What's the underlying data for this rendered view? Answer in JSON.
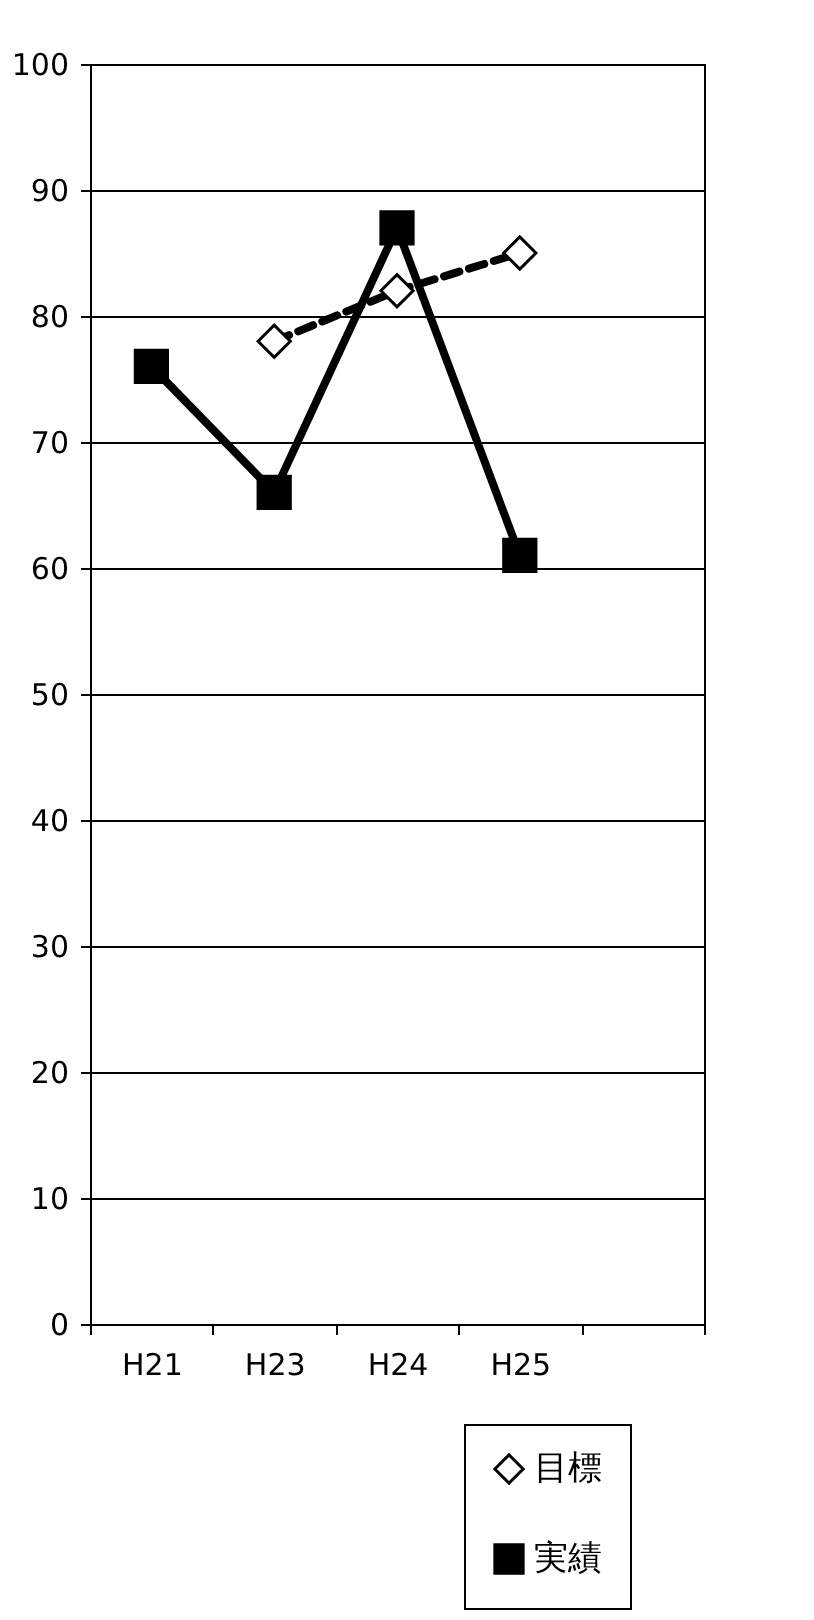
{
  "chart_data": {
    "type": "line",
    "categories": [
      "H21",
      "H23",
      "H24",
      "H25",
      null
    ],
    "series": [
      {
        "name": "目標",
        "color": "#000000",
        "values": [
          null,
          78,
          82,
          85,
          null
        ],
        "line_style": "dashed",
        "marker": "diamond"
      },
      {
        "name": "実績",
        "color": "#000000",
        "values": [
          76,
          66,
          87,
          61,
          null
        ],
        "line_style": "solid",
        "marker": "square"
      }
    ],
    "ylim": [
      0,
      100
    ],
    "yticks": [
      0,
      10,
      20,
      30,
      40,
      50,
      60,
      70,
      80,
      90,
      100
    ],
    "grid": "y",
    "legend": "bottom right"
  }
}
